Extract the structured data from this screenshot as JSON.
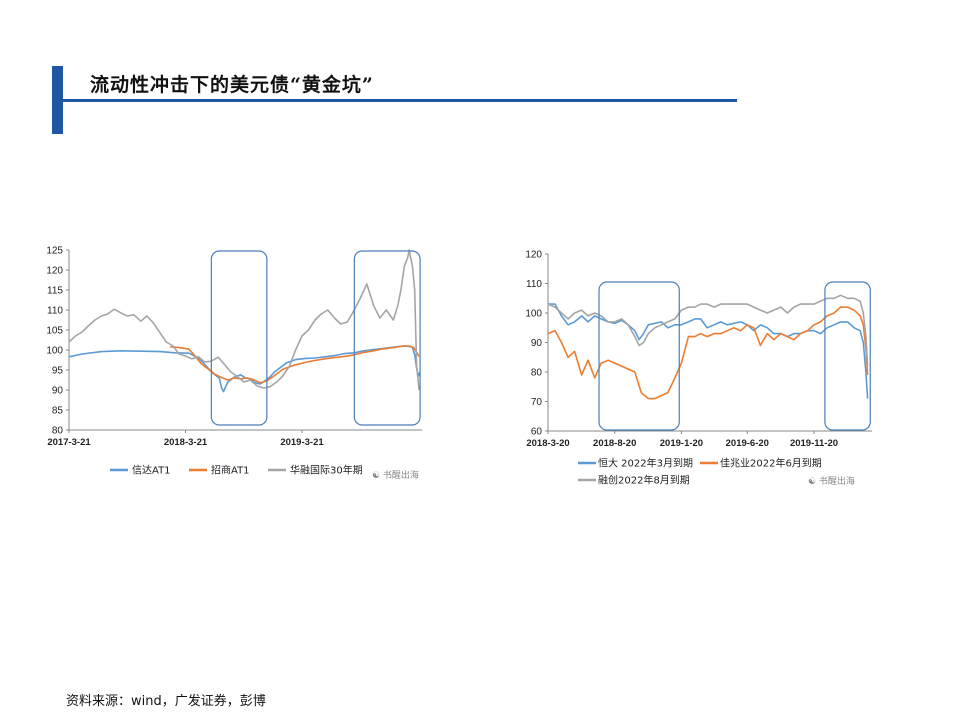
{
  "header": {
    "title": "流动性冲击下的美元债“黄金坑”"
  },
  "source": "资料来源：wind，广发证券，彭博",
  "watermark": "书醒出海",
  "chart_data": [
    {
      "type": "line",
      "title": "",
      "x_ticks": [
        "2017-3-21",
        "2018-3-21",
        "2019-3-21"
      ],
      "x_range": [
        "2017-03-21",
        "2020-03-31"
      ],
      "ylim": [
        80,
        125
      ],
      "y_ticks": [
        80,
        85,
        90,
        95,
        100,
        105,
        110,
        115,
        120,
        125
      ],
      "grid": false,
      "legend": "bottom",
      "highlight_boxes": [
        {
          "from": "2018-06-10",
          "to": "2018-12-01"
        },
        {
          "from": "2019-09-01",
          "to": "2020-03-25"
        }
      ],
      "series": [
        {
          "name": "信达AT1",
          "color": "#5b9bd5",
          "x": [
            "2017-03-21",
            "2017-05-01",
            "2017-07-01",
            "2017-09-01",
            "2017-11-01",
            "2018-01-01",
            "2018-02-15",
            "2018-04-01",
            "2018-05-01",
            "2018-05-25",
            "2018-06-15",
            "2018-07-05",
            "2018-07-12",
            "2018-07-18",
            "2018-08-01",
            "2018-08-20",
            "2018-09-10",
            "2018-09-25",
            "2018-10-10",
            "2018-10-25",
            "2018-11-10",
            "2018-11-25",
            "2018-12-10",
            "2018-12-25",
            "2019-01-10",
            "2019-02-01",
            "2019-03-01",
            "2019-04-01",
            "2019-05-01",
            "2019-06-01",
            "2019-07-01",
            "2019-08-01",
            "2019-09-01",
            "2019-10-01",
            "2019-11-01",
            "2019-12-01",
            "2020-01-01",
            "2020-02-01",
            "2020-02-20",
            "2020-03-01",
            "2020-03-08",
            "2020-03-14",
            "2020-03-20",
            "2020-03-25"
          ],
          "values": [
            98.3,
            99.0,
            99.6,
            99.8,
            99.7,
            99.6,
            99.3,
            99.2,
            98.0,
            96.0,
            94.2,
            93.0,
            90.5,
            89.6,
            92.0,
            93.2,
            93.8,
            93.0,
            92.8,
            91.8,
            91.5,
            92.3,
            93.2,
            94.5,
            95.5,
            96.8,
            97.6,
            97.9,
            98.0,
            98.3,
            98.6,
            99.1,
            99.3,
            99.8,
            100.1,
            100.4,
            100.7,
            101.0,
            100.9,
            100.7,
            98.8,
            95.5,
            93.5,
            94.5
          ]
        },
        {
          "name": "招商AT1",
          "color": "#ed7d31",
          "x": [
            "2018-02-01",
            "2018-03-01",
            "2018-04-01",
            "2018-04-20",
            "2018-05-10",
            "2018-06-01",
            "2018-06-20",
            "2018-07-10",
            "2018-08-01",
            "2018-08-20",
            "2018-09-10",
            "2018-10-01",
            "2018-10-20",
            "2018-11-10",
            "2018-12-01",
            "2018-12-25",
            "2019-01-20",
            "2019-03-01",
            "2019-04-01",
            "2019-05-01",
            "2019-06-01",
            "2019-07-01",
            "2019-08-01",
            "2019-09-01",
            "2019-10-01",
            "2019-11-01",
            "2019-12-01",
            "2020-01-01",
            "2020-02-01",
            "2020-02-20",
            "2020-03-05",
            "2020-03-14",
            "2020-03-22"
          ],
          "values": [
            100.8,
            100.6,
            100.2,
            98.5,
            96.5,
            95.2,
            94.0,
            93.2,
            92.5,
            93.0,
            92.8,
            93.0,
            92.6,
            91.8,
            92.3,
            93.6,
            95.2,
            96.3,
            96.9,
            97.4,
            97.8,
            98.1,
            98.4,
            98.8,
            99.4,
            99.8,
            100.3,
            100.6,
            101.0,
            101.0,
            100.6,
            99.4,
            98.4
          ]
        },
        {
          "name": "华融国际30年期",
          "color": "#a5a5a5",
          "x": [
            "2017-03-21",
            "2017-04-10",
            "2017-05-01",
            "2017-05-20",
            "2017-06-10",
            "2017-07-01",
            "2017-07-20",
            "2017-08-10",
            "2017-09-01",
            "2017-09-20",
            "2017-10-10",
            "2017-11-01",
            "2017-11-20",
            "2017-12-10",
            "2018-01-01",
            "2018-01-20",
            "2018-02-10",
            "2018-03-01",
            "2018-03-21",
            "2018-04-10",
            "2018-05-01",
            "2018-05-20",
            "2018-06-10",
            "2018-07-01",
            "2018-07-20",
            "2018-08-10",
            "2018-09-01",
            "2018-09-20",
            "2018-10-10",
            "2018-11-01",
            "2018-11-20",
            "2018-12-10",
            "2019-01-01",
            "2019-01-20",
            "2019-02-10",
            "2019-03-01",
            "2019-03-21",
            "2019-04-10",
            "2019-05-01",
            "2019-05-20",
            "2019-06-10",
            "2019-07-01",
            "2019-07-20",
            "2019-08-10",
            "2019-09-01",
            "2019-09-20",
            "2019-10-10",
            "2019-11-01",
            "2019-11-20",
            "2019-12-10",
            "2020-01-01",
            "2020-01-15",
            "2020-01-25",
            "2020-02-05",
            "2020-02-15",
            "2020-02-20",
            "2020-03-01",
            "2020-03-08",
            "2020-03-14",
            "2020-03-22"
          ],
          "values": [
            102.0,
            103.5,
            104.5,
            106.0,
            107.5,
            108.5,
            109.0,
            110.2,
            109.2,
            108.5,
            108.8,
            107.2,
            108.5,
            106.8,
            104.2,
            102.0,
            101.0,
            99.0,
            98.5,
            97.8,
            98.3,
            97.0,
            97.2,
            98.2,
            96.5,
            94.5,
            93.3,
            92.0,
            92.5,
            91.0,
            90.5,
            90.8,
            92.0,
            93.5,
            96.0,
            100.0,
            103.5,
            105.0,
            107.5,
            109.0,
            110.0,
            108.0,
            106.5,
            107.0,
            110.0,
            113.0,
            116.5,
            111.0,
            108.0,
            110.0,
            107.5,
            111.0,
            115.0,
            121.0,
            123.0,
            125.0,
            121.0,
            115.0,
            96.0,
            90.0
          ]
        }
      ]
    },
    {
      "type": "line",
      "title": "",
      "x_ticks": [
        "2018-3-20",
        "2018-8-20",
        "2019-1-20",
        "2019-6-20",
        "2019-11-20"
      ],
      "x_range": [
        "2018-03-20",
        "2020-04-01"
      ],
      "ylim": [
        60,
        120
      ],
      "y_ticks": [
        60,
        70,
        80,
        90,
        100,
        110,
        120
      ],
      "grid": false,
      "legend": "bottom",
      "highlight_boxes": [
        {
          "from": "2018-07-15",
          "to": "2019-01-15"
        },
        {
          "from": "2019-12-15",
          "to": "2020-03-28"
        }
      ],
      "series": [
        {
          "name": "恒大 2022年3月到期",
          "color": "#5b9bd5",
          "x": [
            "2018-03-20",
            "2018-04-05",
            "2018-04-20",
            "2018-05-05",
            "2018-05-20",
            "2018-06-05",
            "2018-06-20",
            "2018-07-05",
            "2018-07-20",
            "2018-08-05",
            "2018-08-20",
            "2018-09-05",
            "2018-09-20",
            "2018-10-05",
            "2018-10-15",
            "2018-10-25",
            "2018-11-05",
            "2018-11-20",
            "2018-12-05",
            "2018-12-20",
            "2019-01-05",
            "2019-01-20",
            "2019-02-05",
            "2019-02-20",
            "2019-03-05",
            "2019-03-20",
            "2019-04-05",
            "2019-04-20",
            "2019-05-05",
            "2019-05-20",
            "2019-06-05",
            "2019-06-20",
            "2019-07-05",
            "2019-07-20",
            "2019-08-05",
            "2019-08-20",
            "2019-09-05",
            "2019-09-20",
            "2019-10-05",
            "2019-10-20",
            "2019-11-05",
            "2019-11-20",
            "2019-12-05",
            "2019-12-20",
            "2020-01-05",
            "2020-01-20",
            "2020-02-05",
            "2020-02-20",
            "2020-03-05",
            "2020-03-12",
            "2020-03-18",
            "2020-03-22"
          ],
          "values": [
            103,
            103,
            99,
            96,
            97,
            99,
            97,
            99,
            98,
            97,
            96.5,
            97.5,
            96,
            94,
            91,
            93,
            96,
            96.5,
            97,
            95,
            96,
            96,
            97,
            98,
            98,
            95,
            96,
            97,
            96,
            96.5,
            97,
            96,
            94,
            96,
            95,
            93,
            93,
            92,
            93,
            93,
            94,
            94,
            93,
            95,
            96,
            97,
            97,
            95,
            94,
            90,
            80,
            71
          ]
        },
        {
          "name": "佳兆业2022年6月到期",
          "color": "#ed7d31",
          "x": [
            "2018-03-20",
            "2018-04-05",
            "2018-04-20",
            "2018-05-05",
            "2018-05-20",
            "2018-06-05",
            "2018-06-20",
            "2018-07-05",
            "2018-07-20",
            "2018-08-05",
            "2018-08-20",
            "2018-09-05",
            "2018-09-20",
            "2018-10-05",
            "2018-10-20",
            "2018-11-05",
            "2018-11-20",
            "2018-12-05",
            "2018-12-20",
            "2019-01-05",
            "2019-01-20",
            "2019-02-05",
            "2019-02-20",
            "2019-03-05",
            "2019-03-20",
            "2019-04-05",
            "2019-04-20",
            "2019-05-05",
            "2019-05-20",
            "2019-06-05",
            "2019-06-20",
            "2019-07-05",
            "2019-07-20",
            "2019-08-05",
            "2019-08-20",
            "2019-09-05",
            "2019-09-20",
            "2019-10-05",
            "2019-10-20",
            "2019-11-05",
            "2019-11-20",
            "2019-12-05",
            "2019-12-20",
            "2020-01-05",
            "2020-01-20",
            "2020-02-05",
            "2020-02-20",
            "2020-03-05",
            "2020-03-12",
            "2020-03-18",
            "2020-03-22"
          ],
          "values": [
            93,
            94,
            90,
            85,
            87,
            79,
            84,
            78,
            83,
            84,
            83,
            82,
            81,
            80,
            73,
            71,
            71,
            72,
            73,
            78,
            83,
            92,
            92,
            93,
            92,
            93,
            93,
            94,
            95,
            94,
            96,
            95,
            89,
            93,
            91,
            93,
            92,
            91,
            93,
            94,
            96,
            97,
            99,
            100,
            102,
            102,
            101,
            99,
            96,
            88,
            79
          ]
        },
        {
          "name": "融创2022年8月到期",
          "color": "#a5a5a5",
          "x": [
            "2018-03-20",
            "2018-04-05",
            "2018-04-20",
            "2018-05-05",
            "2018-05-20",
            "2018-06-05",
            "2018-06-20",
            "2018-07-05",
            "2018-07-20",
            "2018-08-05",
            "2018-08-20",
            "2018-09-05",
            "2018-09-20",
            "2018-10-05",
            "2018-10-15",
            "2018-10-25",
            "2018-11-05",
            "2018-11-20",
            "2018-12-05",
            "2018-12-20",
            "2019-01-05",
            "2019-01-20",
            "2019-02-05",
            "2019-02-20",
            "2019-03-05",
            "2019-03-20",
            "2019-04-05",
            "2019-04-20",
            "2019-05-05",
            "2019-05-20",
            "2019-06-05",
            "2019-06-20",
            "2019-07-05",
            "2019-07-20",
            "2019-08-05",
            "2019-08-20",
            "2019-09-05",
            "2019-09-20",
            "2019-10-05",
            "2019-10-20",
            "2019-11-05",
            "2019-11-20",
            "2019-12-05",
            "2019-12-20",
            "2020-01-05",
            "2020-01-20",
            "2020-02-05",
            "2020-02-20",
            "2020-03-05",
            "2020-03-12",
            "2020-03-18",
            "2020-03-22"
          ],
          "values": [
            103,
            102,
            100,
            98,
            100,
            101,
            99,
            100,
            99,
            97,
            97,
            98,
            96,
            92,
            89,
            90,
            93,
            95,
            96,
            97,
            98,
            101,
            102,
            102,
            103,
            103,
            102,
            103,
            103,
            103,
            103,
            103,
            102,
            101,
            100,
            101,
            102,
            100,
            102,
            103,
            103,
            103,
            104,
            105,
            105,
            106,
            105,
            105,
            104,
            100,
            92,
            82
          ]
        }
      ]
    }
  ]
}
